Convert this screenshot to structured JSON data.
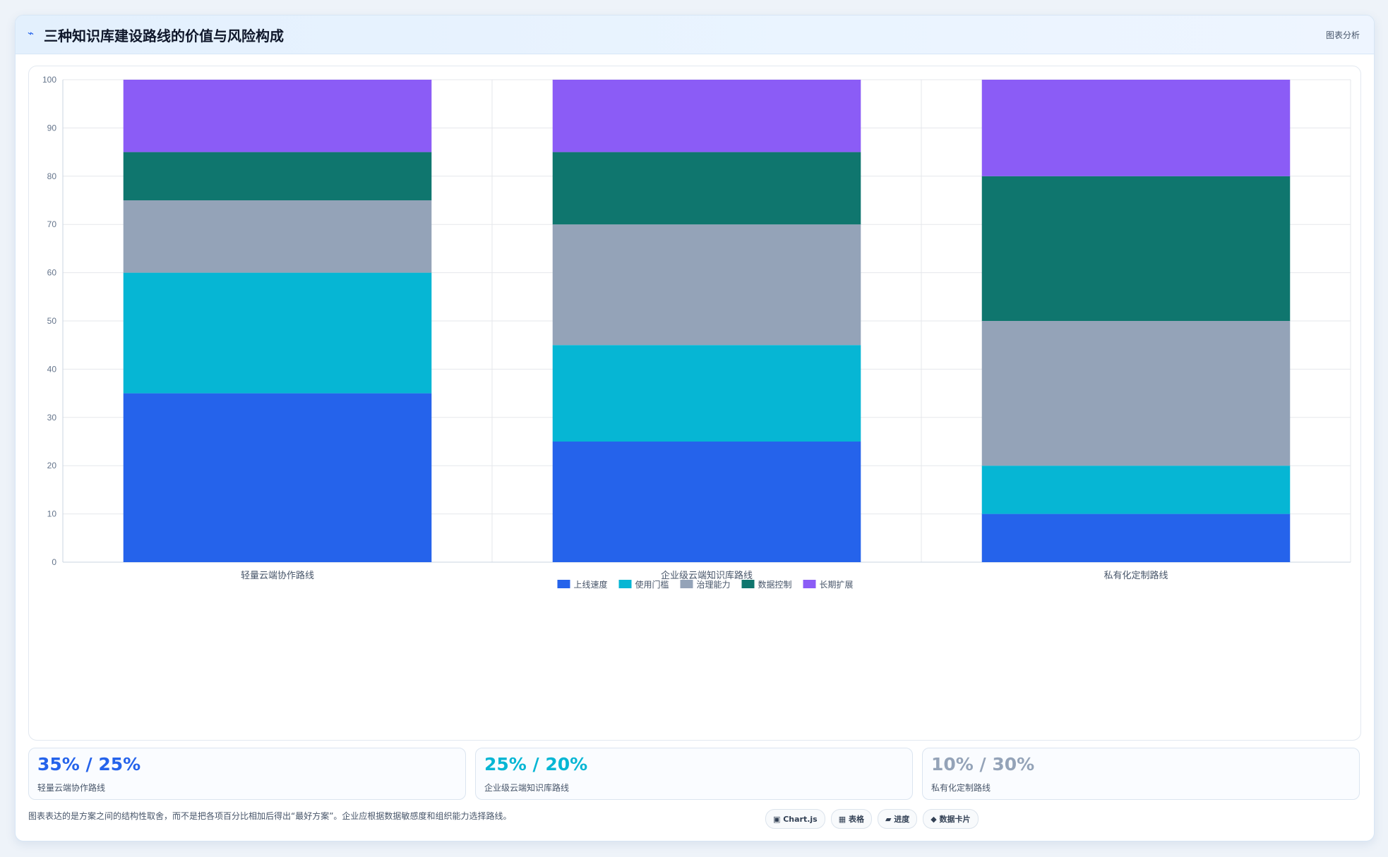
{
  "header": {
    "icon": "chart-line-icon",
    "icon_glyph": "⌁",
    "title": "三种知识库建设路线的价值与风险构成",
    "tag": "图表分析"
  },
  "chart_data": {
    "type": "bar",
    "stacked": true,
    "categories": [
      "轻量云端协作路线",
      "企业级云端知识库路线",
      "私有化定制路线"
    ],
    "series": [
      {
        "name": "上线速度",
        "color": "#2563eb",
        "values": [
          35,
          25,
          10
        ]
      },
      {
        "name": "使用门槛",
        "color": "#06b6d4",
        "values": [
          25,
          20,
          10
        ]
      },
      {
        "name": "治理能力",
        "color": "#94a3b8",
        "values": [
          15,
          25,
          30
        ]
      },
      {
        "name": "数据控制",
        "color": "#0f766e",
        "values": [
          10,
          15,
          30
        ]
      },
      {
        "name": "长期扩展",
        "color": "#8b5cf6",
        "values": [
          15,
          15,
          20
        ]
      }
    ],
    "ylim": [
      0,
      100
    ],
    "yticks": [
      0,
      10,
      20,
      30,
      40,
      50,
      60,
      70,
      80,
      90,
      100
    ],
    "grid": true,
    "legend_position": "bottom"
  },
  "stats": [
    {
      "value": "35% / 25%",
      "label": "轻量云端协作路线",
      "color": "#2563eb"
    },
    {
      "value": "25% / 20%",
      "label": "企业级云端知识库路线",
      "color": "#06b6d4"
    },
    {
      "value": "10% / 30%",
      "label": "私有化定制路线",
      "color": "#94a3b8"
    }
  ],
  "footnote": "图表表达的是方案之间的结构性取舍，而不是把各项百分比相加后得出“最好方案”。企业应根据数据敏感度和组织能力选择路线。",
  "chips": [
    {
      "label": "▣ Chart.js",
      "icon": "chart-icon"
    },
    {
      "label": "▦ 表格",
      "icon": "table-icon"
    },
    {
      "label": "▰ 进度",
      "icon": "progress-icon"
    },
    {
      "label": "◆ 数据卡片",
      "icon": "card-icon"
    }
  ]
}
